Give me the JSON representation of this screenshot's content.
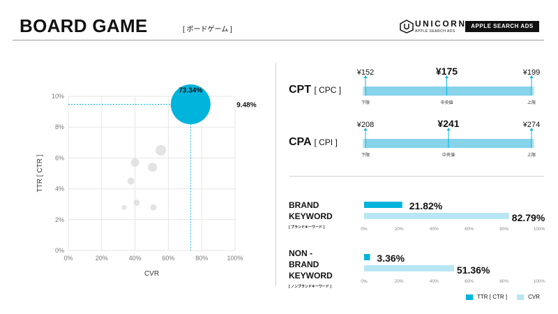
{
  "header": {
    "title": "BOARD GAME",
    "subtitle": "[ ボードゲーム ]",
    "logo_word": "UNICORN",
    "logo_sub": "APPLE SEARCH ADS",
    "logo_badge": "APPLE SEARCH ADS"
  },
  "colors": {
    "accent": "#00b4dc",
    "accent_light": "#b9e6f3",
    "bubble_grey": "#d9d9d9",
    "grid": "#e6e6e6"
  },
  "chart_data": [
    {
      "type": "scatter",
      "xlabel": "CVR",
      "ylabel": "TTR [ CTR ]",
      "xlim": [
        0,
        100
      ],
      "ylim": [
        0,
        10
      ],
      "x_ticks": [
        "0%",
        "20%",
        "40%",
        "60%",
        "80%",
        "100%"
      ],
      "y_ticks": [
        "0%",
        "2%",
        "4%",
        "6%",
        "8%",
        "10%"
      ],
      "grid": true,
      "highlight": {
        "x": 73.34,
        "y": 9.48,
        "x_label": "73.34%",
        "y_label": "9.48%",
        "r": 9.5
      },
      "points": [
        {
          "x": 55.5,
          "y": 6.5,
          "r": 7.5
        },
        {
          "x": 40,
          "y": 5.7,
          "r": 6
        },
        {
          "x": 50.5,
          "y": 5.4,
          "r": 6.5
        },
        {
          "x": 37.5,
          "y": 4.5,
          "r": 5
        },
        {
          "x": 41,
          "y": 3.1,
          "r": 4.5
        },
        {
          "x": 51,
          "y": 2.8,
          "r": 4.5
        },
        {
          "x": 33.5,
          "y": 2.8,
          "r": 3.5
        }
      ]
    },
    {
      "type": "range",
      "label": "CPT",
      "label_sub": "[ CPC ]",
      "min": 152,
      "mid": 175,
      "max": 199,
      "min_label": "¥152",
      "mid_label": "¥175",
      "max_label": "¥199",
      "min_caption": "下限",
      "mid_caption": "中央値",
      "max_caption": "上限"
    },
    {
      "type": "range",
      "label": "CPA",
      "label_sub": "[ CPI ]",
      "min": 208,
      "mid": 241,
      "max": 274,
      "min_label": "¥208",
      "mid_label": "¥241",
      "max_label": "¥274",
      "min_caption": "下限",
      "mid_caption": "中央値",
      "max_caption": "上限"
    },
    {
      "type": "bar",
      "label_line1": "BRAND",
      "label_line2": "KEYWORD",
      "label_sub": "[ ブランドキーワード ]",
      "ttr": 21.82,
      "cvr": 82.79,
      "ttr_label": "21.82%",
      "cvr_label": "82.79%",
      "x_ticks": [
        "0%",
        "20%",
        "40%",
        "60%",
        "80%",
        "100%"
      ]
    },
    {
      "type": "bar",
      "label_line1": "NON -",
      "label_line2": "BRAND",
      "label_line3": "KEYWORD",
      "label_sub": "[ ノンブランドキーワード ]",
      "ttr": 3.36,
      "cvr": 51.36,
      "ttr_label": "3.36%",
      "cvr_label": "51.36%",
      "x_ticks": [
        "0%",
        "20%",
        "40%",
        "60%",
        "80%",
        "100%"
      ]
    }
  ],
  "legend": [
    {
      "name": "TTR [ CTR ]",
      "color": "#00b4dc"
    },
    {
      "name": "CVR",
      "color": "#b9e6f3"
    }
  ]
}
